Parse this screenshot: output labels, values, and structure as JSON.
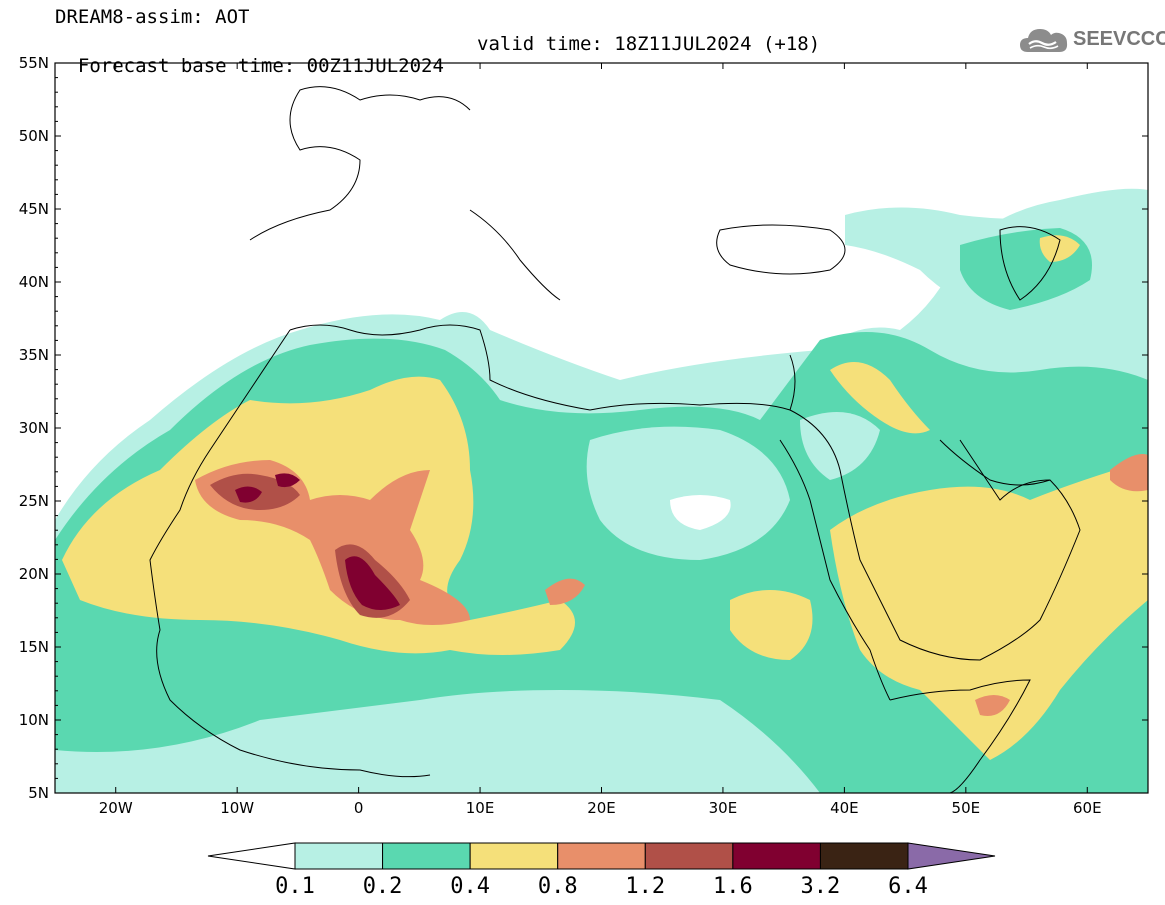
{
  "title": {
    "line1": "DREAM8-assim: AOT",
    "line2_left": "Forecast base time: 00Z11JUL2024",
    "line2_right": "valid time: 18Z11JUL2024 (+18)"
  },
  "logo": {
    "text": "SEEVCCC",
    "icon": "cloud-logo-icon"
  },
  "map": {
    "lon_range": [
      -25,
      65
    ],
    "lat_range": [
      5,
      55
    ],
    "lat_ticks": [
      "5N",
      "10N",
      "15N",
      "20N",
      "25N",
      "30N",
      "35N",
      "40N",
      "45N",
      "50N",
      "55N"
    ],
    "lat_values": [
      5,
      10,
      15,
      20,
      25,
      30,
      35,
      40,
      45,
      50,
      55
    ],
    "lon_ticks": [
      "20W",
      "10W",
      "0",
      "10E",
      "20E",
      "30E",
      "40E",
      "50E",
      "60E"
    ],
    "lon_values": [
      -20,
      -10,
      0,
      10,
      20,
      30,
      40,
      50,
      60
    ]
  },
  "colorbar": {
    "labels": [
      "0.1",
      "0.2",
      "0.4",
      "0.8",
      "1.2",
      "1.6",
      "3.2",
      "6.4"
    ],
    "colors": [
      "#ffffff",
      "#b7f0e4",
      "#5ad8b0",
      "#f5e07a",
      "#e88f6a",
      "#b05048",
      "#800030",
      "#3a2314",
      "#8a6aa8"
    ]
  }
}
